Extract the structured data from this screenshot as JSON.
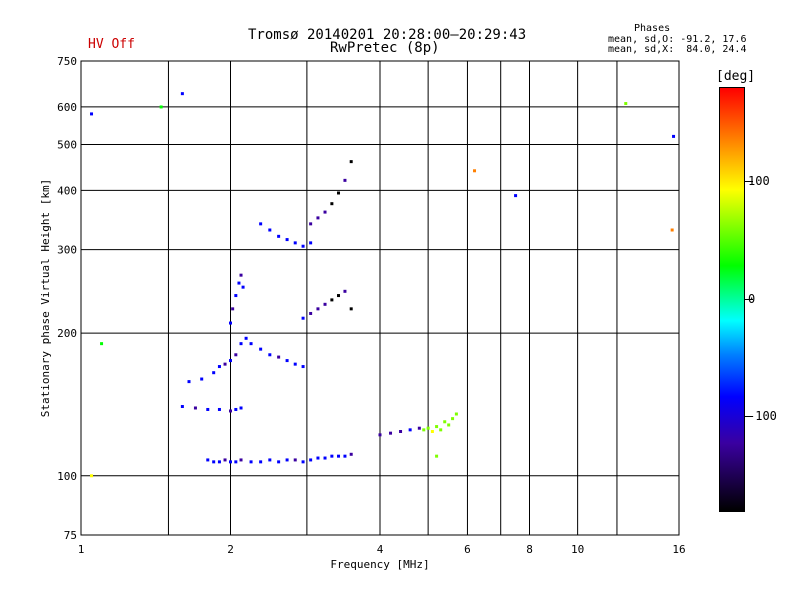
{
  "header": {
    "title_line1": "Tromsø 20140201 20:28:00–20:29:43",
    "title_line2": "RwPretec (8p)",
    "hv_status": "HV Off"
  },
  "phases_box": {
    "heading": "Phases",
    "line1": "mean, sd,O: -91.2, 17.6",
    "line2": "mean, sd,X:  84.0, 24.4"
  },
  "colorbar": {
    "unit": "[deg]",
    "ticks": [
      {
        "label": "100",
        "value": 100
      },
      {
        "label": "0",
        "value": 0
      },
      {
        "label": "-100",
        "value": -100
      }
    ],
    "range": [
      -180,
      180
    ]
  },
  "chart_data": {
    "type": "scatter",
    "xlabel": "Frequency [MHz]",
    "ylabel": "Stationary phase Virtual Height [km]",
    "xscale": "log",
    "yscale": "log",
    "xlim": [
      1,
      16
    ],
    "ylim": [
      75,
      750
    ],
    "xticks": [
      {
        "label": "1",
        "value": 1
      },
      {
        "label": "2",
        "value": 2
      },
      {
        "label": "4",
        "value": 4
      },
      {
        "label": "6",
        "value": 6
      },
      {
        "label": "8",
        "value": 8
      },
      {
        "label": "10",
        "value": 10
      },
      {
        "label": "16",
        "value": 16
      }
    ],
    "yticks": [
      {
        "label": "750",
        "value": 750
      },
      {
        "label": "600",
        "value": 600
      },
      {
        "label": "500",
        "value": 500
      },
      {
        "label": "400",
        "value": 400
      },
      {
        "label": "300",
        "value": 300
      },
      {
        "label": "200",
        "value": 200
      },
      {
        "label": "100",
        "value": 100
      },
      {
        "label": "75",
        "value": 75
      }
    ],
    "extra_grid_x": [
      1.5,
      2.85,
      5,
      7,
      12
    ],
    "grid": true,
    "color_scale": "phase (deg)",
    "series": [
      {
        "x": [
          1.8,
          1.85,
          1.9,
          1.95,
          2.0,
          2.05,
          2.1,
          2.2,
          2.3,
          2.4,
          2.5,
          2.6,
          2.7,
          2.8,
          2.9,
          3.0,
          3.1,
          3.2,
          3.3,
          3.4,
          3.5
        ],
        "y": [
          108,
          107,
          107,
          108,
          107,
          107,
          108,
          107,
          107,
          108,
          107,
          108,
          108,
          107,
          108,
          109,
          109,
          110,
          110,
          110,
          111
        ],
        "phase": [
          -100,
          -95,
          -100,
          -105,
          -100,
          -98,
          -102,
          -100,
          -95,
          -100,
          -90,
          -100,
          -105,
          -95,
          -100,
          -100,
          -95,
          -100,
          -98,
          -100,
          -102
        ]
      },
      {
        "x": [
          1.6,
          1.7,
          1.8,
          1.9,
          2.0,
          2.05,
          2.1
        ],
        "y": [
          140,
          139,
          138,
          138,
          137,
          138,
          139
        ],
        "phase": [
          -100,
          -105,
          -100,
          -98,
          -102,
          -100,
          -95
        ]
      },
      {
        "x": [
          1.65,
          1.75,
          1.85,
          1.9,
          1.95,
          2.0,
          2.05,
          2.1,
          2.15
        ],
        "y": [
          158,
          160,
          165,
          170,
          172,
          175,
          180,
          190,
          195
        ],
        "phase": [
          -100,
          -100,
          -95,
          -100,
          -105,
          -100,
          -110,
          -100,
          -98
        ]
      },
      {
        "x": [
          2.0,
          2.02,
          2.05,
          2.08,
          2.1,
          2.12
        ],
        "y": [
          210,
          225,
          240,
          255,
          265,
          250
        ],
        "phase": [
          -100,
          -105,
          -100,
          -98,
          -102,
          -100
        ]
      },
      {
        "x": [
          2.2,
          2.3,
          2.4,
          2.5,
          2.6,
          2.7,
          2.8
        ],
        "y": [
          190,
          185,
          180,
          178,
          175,
          172,
          170
        ],
        "phase": [
          -100,
          -95,
          -100,
          -105,
          -95,
          -100,
          -100
        ]
      },
      {
        "x": [
          2.8,
          2.9,
          3.0,
          3.1,
          3.2,
          3.3,
          3.4,
          3.5
        ],
        "y": [
          215,
          220,
          225,
          230,
          235,
          240,
          245,
          225
        ],
        "phase": [
          -100,
          -120,
          -130,
          -125,
          -140,
          -135,
          -130,
          -140
        ]
      },
      {
        "x": [
          2.3,
          2.4,
          2.5,
          2.6,
          2.7,
          2.8,
          2.9
        ],
        "y": [
          340,
          330,
          320,
          315,
          310,
          305,
          310
        ],
        "phase": [
          -100,
          -95,
          -100,
          -90,
          -95,
          -100,
          -95
        ]
      },
      {
        "x": [
          2.9,
          3.0,
          3.1,
          3.2,
          3.3,
          3.4,
          3.5
        ],
        "y": [
          340,
          350,
          360,
          375,
          395,
          420,
          460
        ],
        "phase": [
          -120,
          -125,
          -130,
          -140,
          -135,
          -130,
          -140
        ]
      },
      {
        "x": [
          4.0,
          4.2,
          4.4,
          4.6,
          4.8
        ],
        "y": [
          122,
          123,
          124,
          125,
          126
        ],
        "phase": [
          -110,
          -105,
          -110,
          -100,
          -105
        ]
      },
      {
        "x": [
          4.9,
          5.0,
          5.1,
          5.2,
          5.3,
          5.4,
          5.5,
          5.6,
          5.7
        ],
        "y": [
          125,
          126,
          124,
          127,
          125,
          130,
          128,
          132,
          135
        ],
        "phase": [
          90,
          95,
          100,
          85,
          92,
          88,
          95,
          90,
          85
        ]
      },
      {
        "x": [
          1.05,
          1.05,
          1.1,
          1.45,
          1.6,
          5.2,
          6.2,
          7.5,
          12.5,
          15.5,
          15.6
        ],
        "y": [
          580,
          100,
          190,
          600,
          640,
          110,
          440,
          390,
          610,
          330,
          520
        ],
        "phase": [
          -100,
          100,
          30,
          40,
          -100,
          90,
          160,
          -100,
          60,
          160,
          -90
        ]
      }
    ]
  }
}
